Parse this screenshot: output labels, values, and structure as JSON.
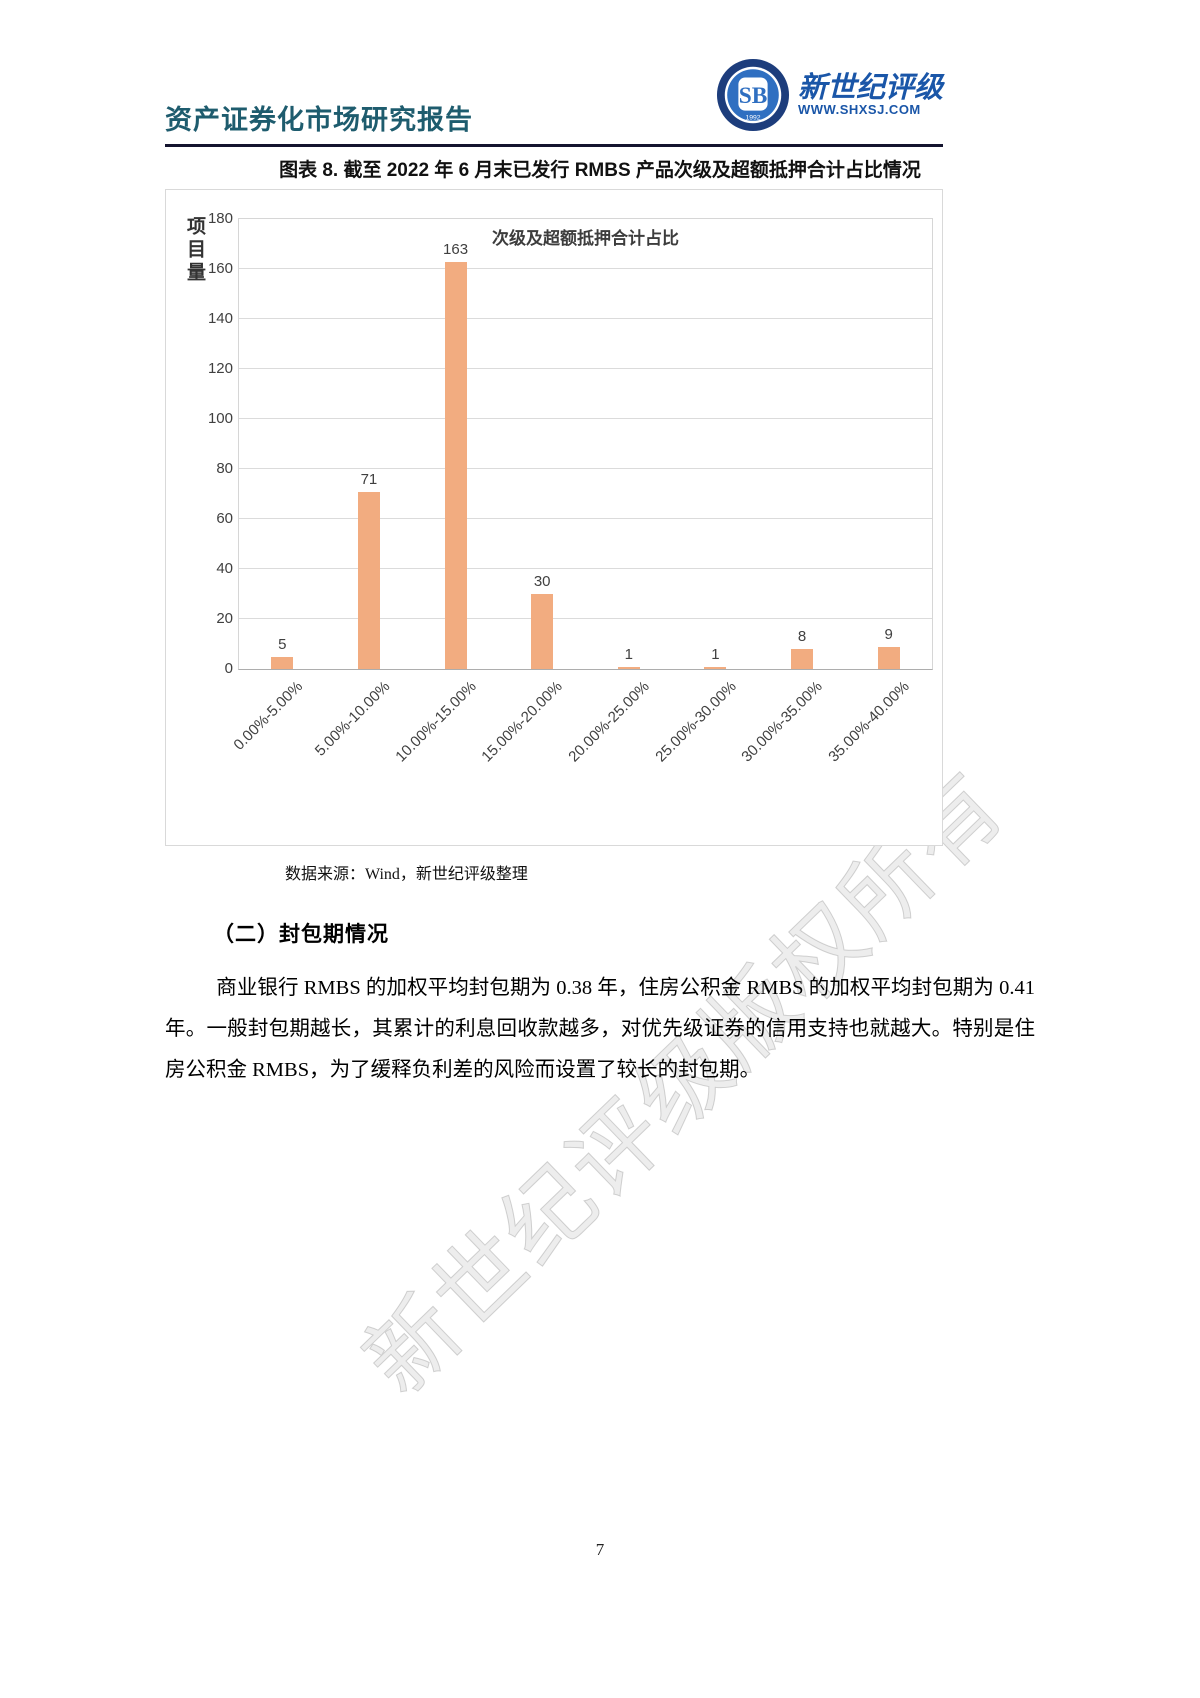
{
  "header": {
    "report_title": "资产证券化市场研究报告",
    "logo": {
      "brand_name": "新世纪评级",
      "website": "WWW.SHXSJ.COM",
      "monogram": "SB"
    }
  },
  "figure": {
    "caption": "图表 8.  截至 2022 年 6 月末已发行 RMBS 产品次级及超额抵押合计占比情况",
    "source_note": "数据来源：Wind，新世纪评级整理"
  },
  "chart_data": {
    "type": "bar",
    "title": "次级及超额抵押合计占比",
    "ylabel": "项目量",
    "xlabel": "",
    "categories": [
      "0.00%-5.00%",
      "5.00%-10.00%",
      "10.00%-15.00%",
      "15.00%-20.00%",
      "20.00%-25.00%",
      "25.00%-30.00%",
      "30.00%-35.00%",
      "35.00%-40.00%"
    ],
    "values": [
      5,
      71,
      163,
      30,
      1,
      1,
      8,
      9
    ],
    "ylim": [
      0,
      180
    ],
    "ytick_step": 20,
    "grid": true,
    "legend": "none",
    "bar_color": "#F2AC80",
    "label_color": "#404040"
  },
  "section": {
    "heading": "（二）封包期情况",
    "paragraph": "商业银行 RMBS 的加权平均封包期为 0.38 年，住房公积金 RMBS 的加权平均封包期为 0.41 年。一般封包期越长，其累计的利息回收款越多，对优先级证券的信用支持也就越大。特别是住房公积金 RMBS，为了缓释负利差的风险而设置了较长的封包期。"
  },
  "watermark": {
    "text": "新世纪评级版权所有"
  },
  "footer": {
    "page_number": "7"
  },
  "colors": {
    "title_teal": "#1E5C6E",
    "brand_blue": "#1A56A8",
    "header_rule": "#14142E",
    "bar_orange": "#F2AC80",
    "gridline_gray": "#DBDBDB",
    "axis_text_gray": "#404040"
  }
}
